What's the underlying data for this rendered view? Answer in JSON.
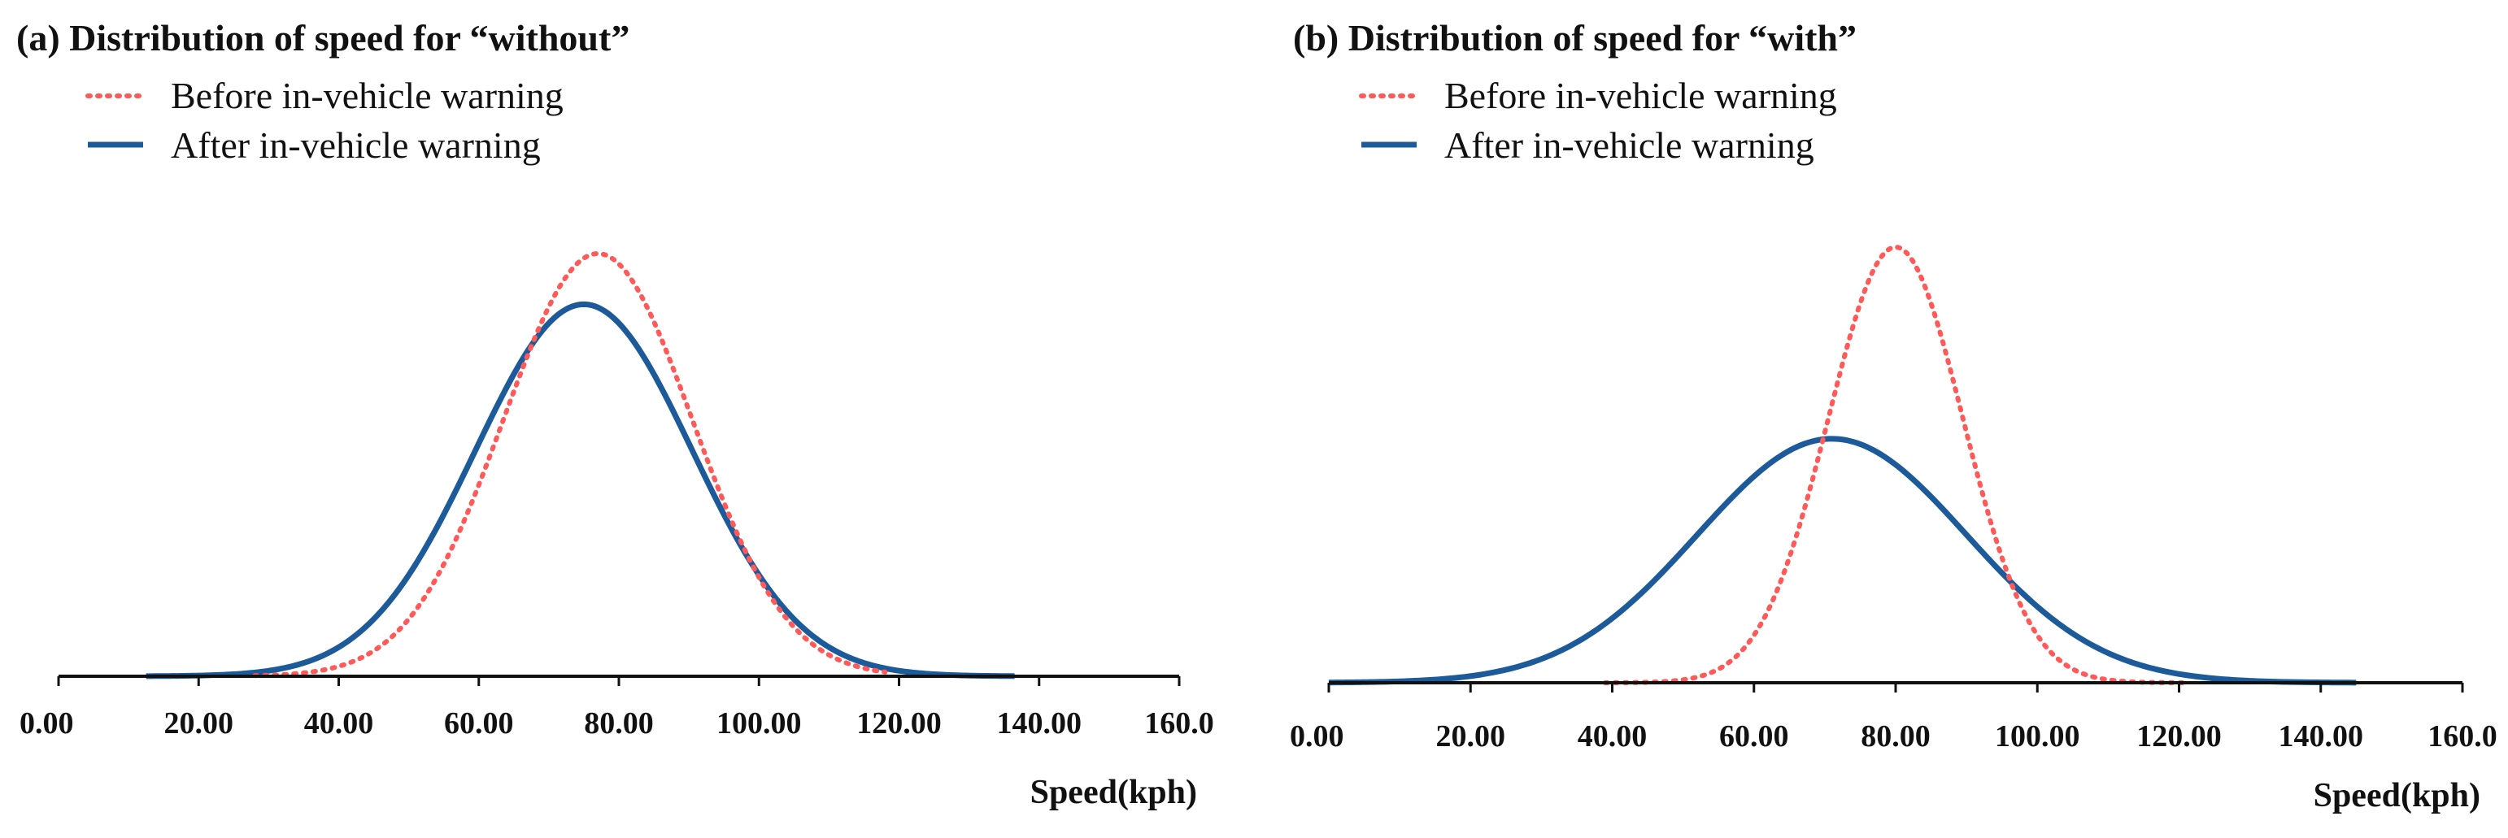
{
  "colors": {
    "before": "#ff5a5a",
    "after": "#1d5a9a",
    "axis": "#111111"
  },
  "chart_data": [
    {
      "type": "line",
      "title": "(a) Distribution of speed for “without”",
      "xlabel": "Speed(kph)",
      "ylabel": "",
      "xlim": [
        0,
        160
      ],
      "x_ticks": [
        "0.00",
        "20.00",
        "40.00",
        "60.00",
        "80.00",
        "100.00",
        "120.00",
        "140.00",
        "160.0"
      ],
      "x_tick_values": [
        0,
        20,
        40,
        60,
        80,
        100,
        120,
        140,
        160
      ],
      "legend": [
        {
          "name": "Before in-vehicle warning",
          "style": "dotted"
        },
        {
          "name": "After in-vehicle warning",
          "style": "solid"
        }
      ],
      "series": [
        {
          "name": "Before in-vehicle warning",
          "distribution": "normal",
          "mean": 77,
          "sd": 13.5,
          "x_range": [
            28,
            118
          ],
          "relative_peak": 1.0
        },
        {
          "name": "After in-vehicle warning",
          "distribution": "normal",
          "mean": 75,
          "sd": 15.5,
          "x_range": [
            12.5,
            136.5
          ],
          "relative_peak": 0.88
        }
      ]
    },
    {
      "type": "line",
      "title": "(b) Distribution of speed for “with”",
      "xlabel": "Speed(kph)",
      "ylabel": "",
      "xlim": [
        0,
        160
      ],
      "x_ticks": [
        "0.00",
        "20.00",
        "40.00",
        "60.00",
        "80.00",
        "100.00",
        "120.00",
        "140.00",
        "160.0"
      ],
      "x_tick_values": [
        0,
        20,
        40,
        60,
        80,
        100,
        120,
        140,
        160
      ],
      "legend": [
        {
          "name": "Before in-vehicle warning",
          "style": "dotted"
        },
        {
          "name": "After in-vehicle warning",
          "style": "solid"
        }
      ],
      "series": [
        {
          "name": "Before in-vehicle warning",
          "distribution": "normal",
          "mean": 80,
          "sd": 9.5,
          "x_range": [
            39,
            121
          ],
          "relative_peak": 1.0
        },
        {
          "name": "After in-vehicle warning",
          "distribution": "normal",
          "mean": 71,
          "sd": 19,
          "x_range": [
            0,
            145
          ],
          "relative_peak": 0.56
        }
      ]
    }
  ]
}
